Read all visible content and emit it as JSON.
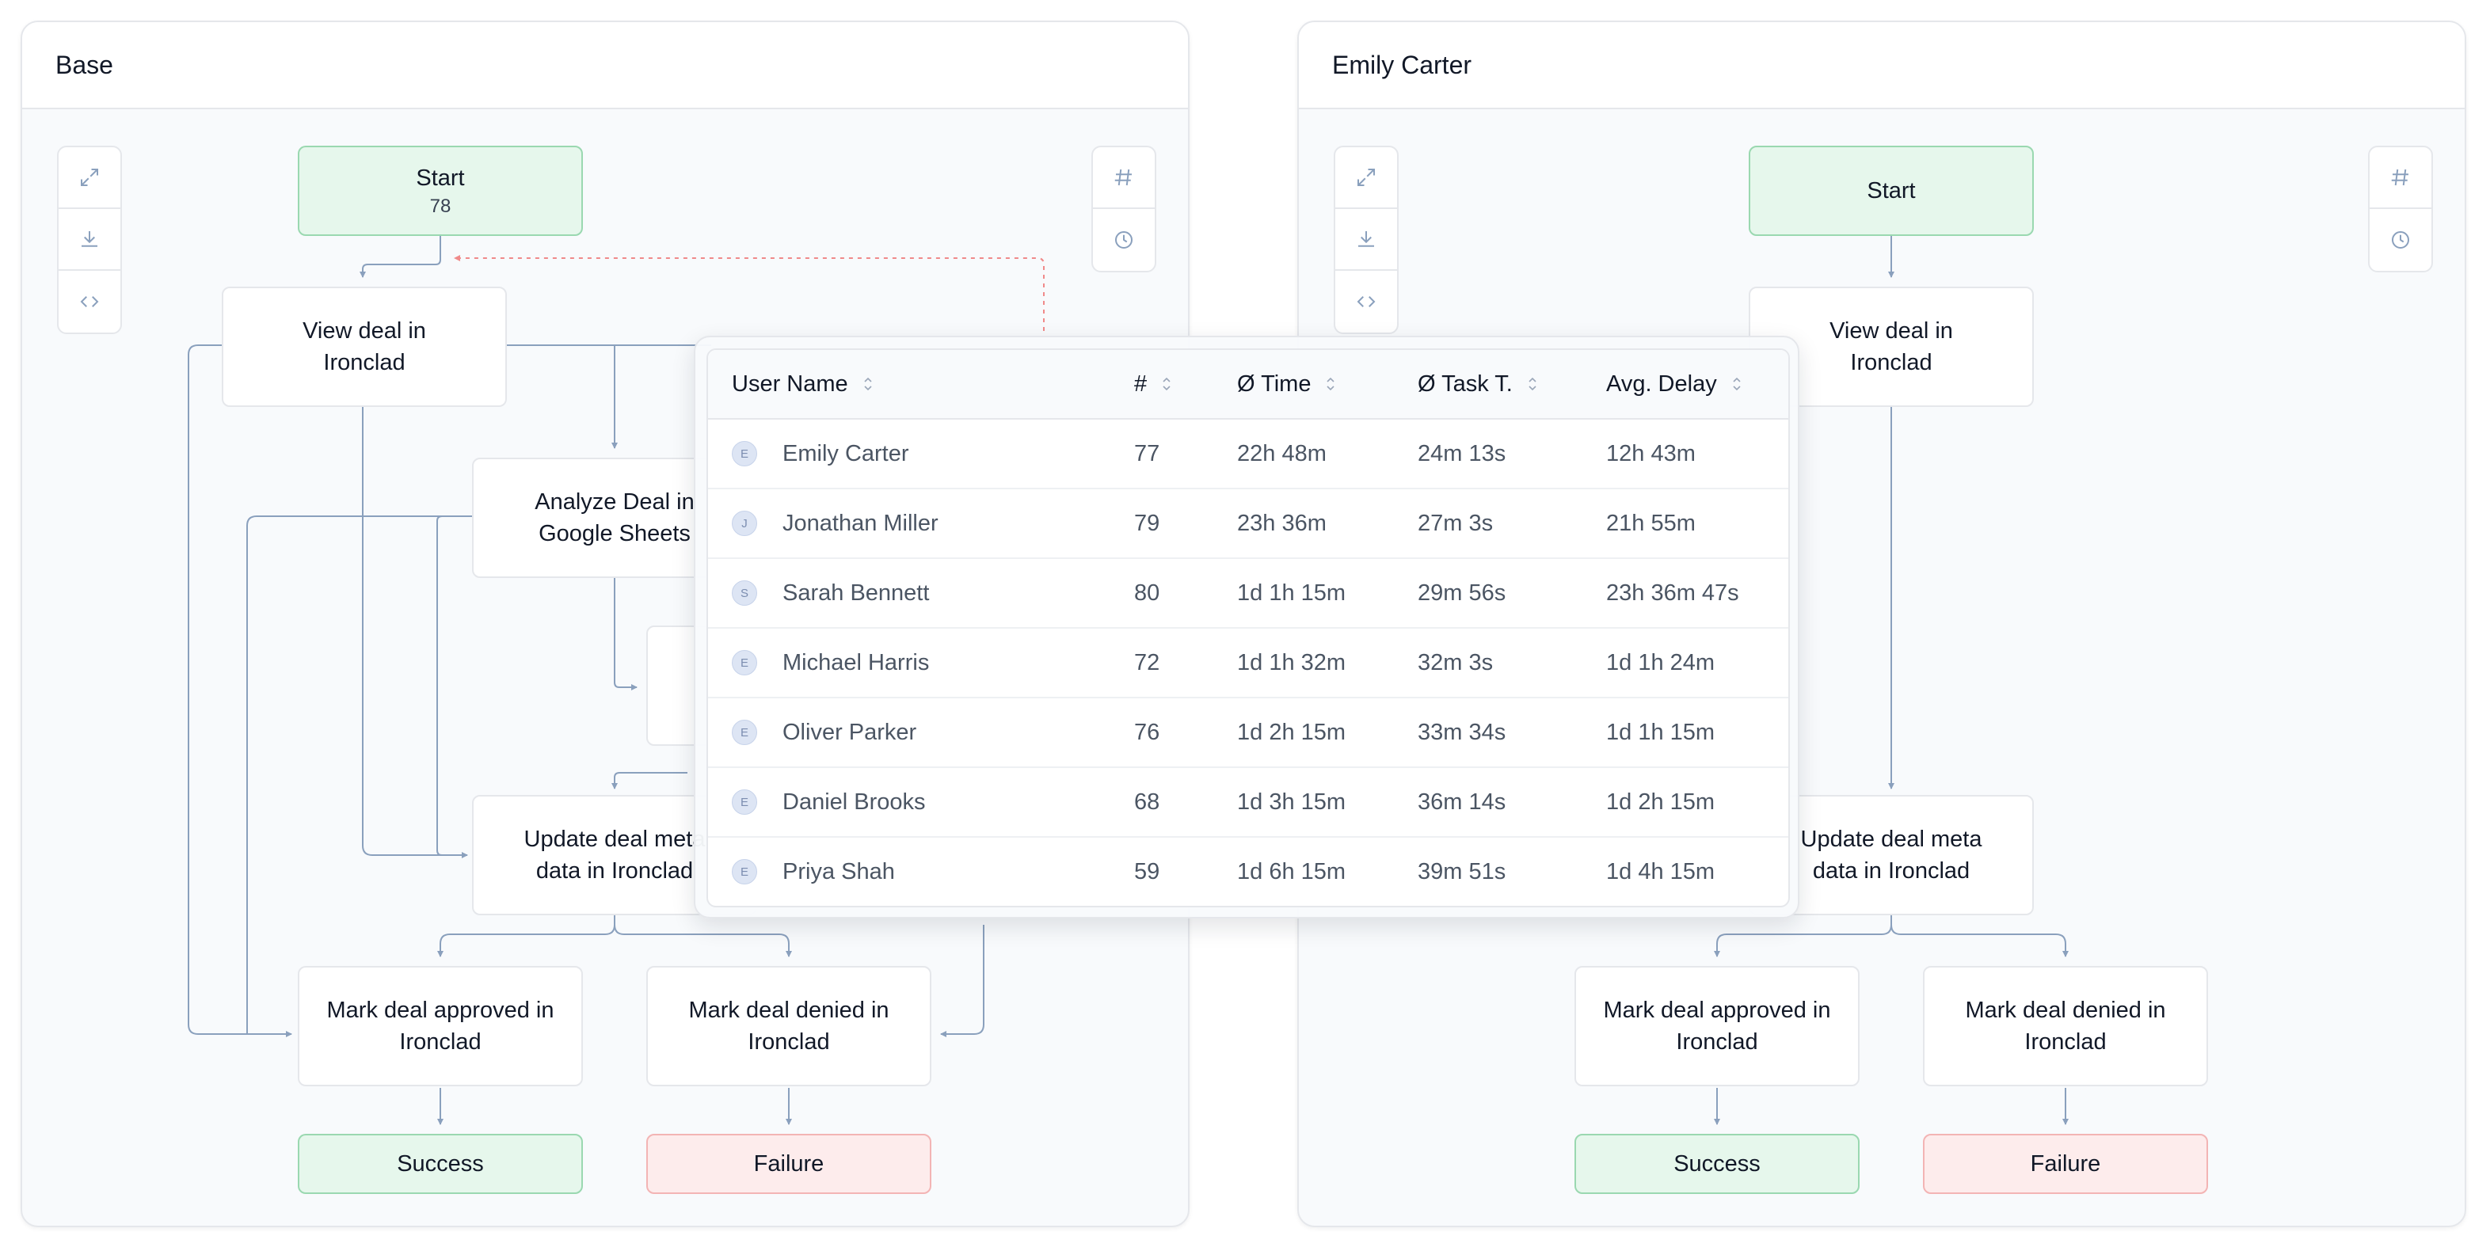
{
  "panels": [
    {
      "title": "Base",
      "nodes": {
        "start": {
          "label": "Start",
          "count": "78"
        },
        "view": {
          "label": "View deal in Ironclad"
        },
        "analyze": {
          "label": "Analyze Deal in Google Sheets"
        },
        "update": {
          "label": "Update deal meta data in Ironclad"
        },
        "approved": {
          "label": "Mark deal approved in Ironclad"
        },
        "denied": {
          "label": "Mark deal denied in Ironclad"
        },
        "success": {
          "label": "Success"
        },
        "failure": {
          "label": "Failure"
        }
      }
    },
    {
      "title": "Emily Carter",
      "nodes": {
        "start": {
          "label": "Start"
        },
        "view": {
          "label": "View deal in Ironclad"
        },
        "update": {
          "label": "Update deal meta data in Ironclad"
        },
        "approved": {
          "label": "Mark deal approved in Ironclad"
        },
        "denied": {
          "label": "Mark deal denied in Ironclad"
        },
        "success": {
          "label": "Success"
        },
        "failure": {
          "label": "Failure"
        }
      }
    }
  ],
  "toolbar": {
    "left": [
      "expand-icon",
      "download-icon",
      "code-icon"
    ],
    "right": [
      "hash-icon",
      "clock-icon"
    ]
  },
  "table": {
    "columns": [
      "User Name",
      "#",
      "Ø Time",
      "Ø Task T.",
      "Avg. Delay"
    ],
    "rows": [
      {
        "initial": "E",
        "name": "Emily Carter",
        "count": "77",
        "time": "22h 48m",
        "task": "24m 13s",
        "delay": "12h 43m"
      },
      {
        "initial": "J",
        "name": "Jonathan Miller",
        "count": "79",
        "time": "23h 36m",
        "task": "27m 3s",
        "delay": "21h 55m"
      },
      {
        "initial": "S",
        "name": "Sarah Bennett",
        "count": "80",
        "time": "1d 1h 15m",
        "task": "29m 56s",
        "delay": "23h 36m 47s"
      },
      {
        "initial": "E",
        "name": "Michael Harris",
        "count": "72",
        "time": "1d 1h 32m",
        "task": "32m 3s",
        "delay": "1d 1h 24m"
      },
      {
        "initial": "E",
        "name": "Oliver Parker",
        "count": "76",
        "time": "1d 2h 15m",
        "task": "33m 34s",
        "delay": "1d 1h 15m"
      },
      {
        "initial": "E",
        "name": "Daniel Brooks",
        "count": "68",
        "time": "1d 3h 15m",
        "task": "36m 14s",
        "delay": "1d 2h 15m"
      },
      {
        "initial": "E",
        "name": "Priya Shah",
        "count": "59",
        "time": "1d 6h 15m",
        "task": "39m 51s",
        "delay": "1d 4h 15m"
      }
    ]
  },
  "colors": {
    "edge": "#8aa0bd",
    "edge_dotted": "#f08a8a",
    "start_bg": "#e6f7ec",
    "failure_bg": "#fdecec"
  }
}
